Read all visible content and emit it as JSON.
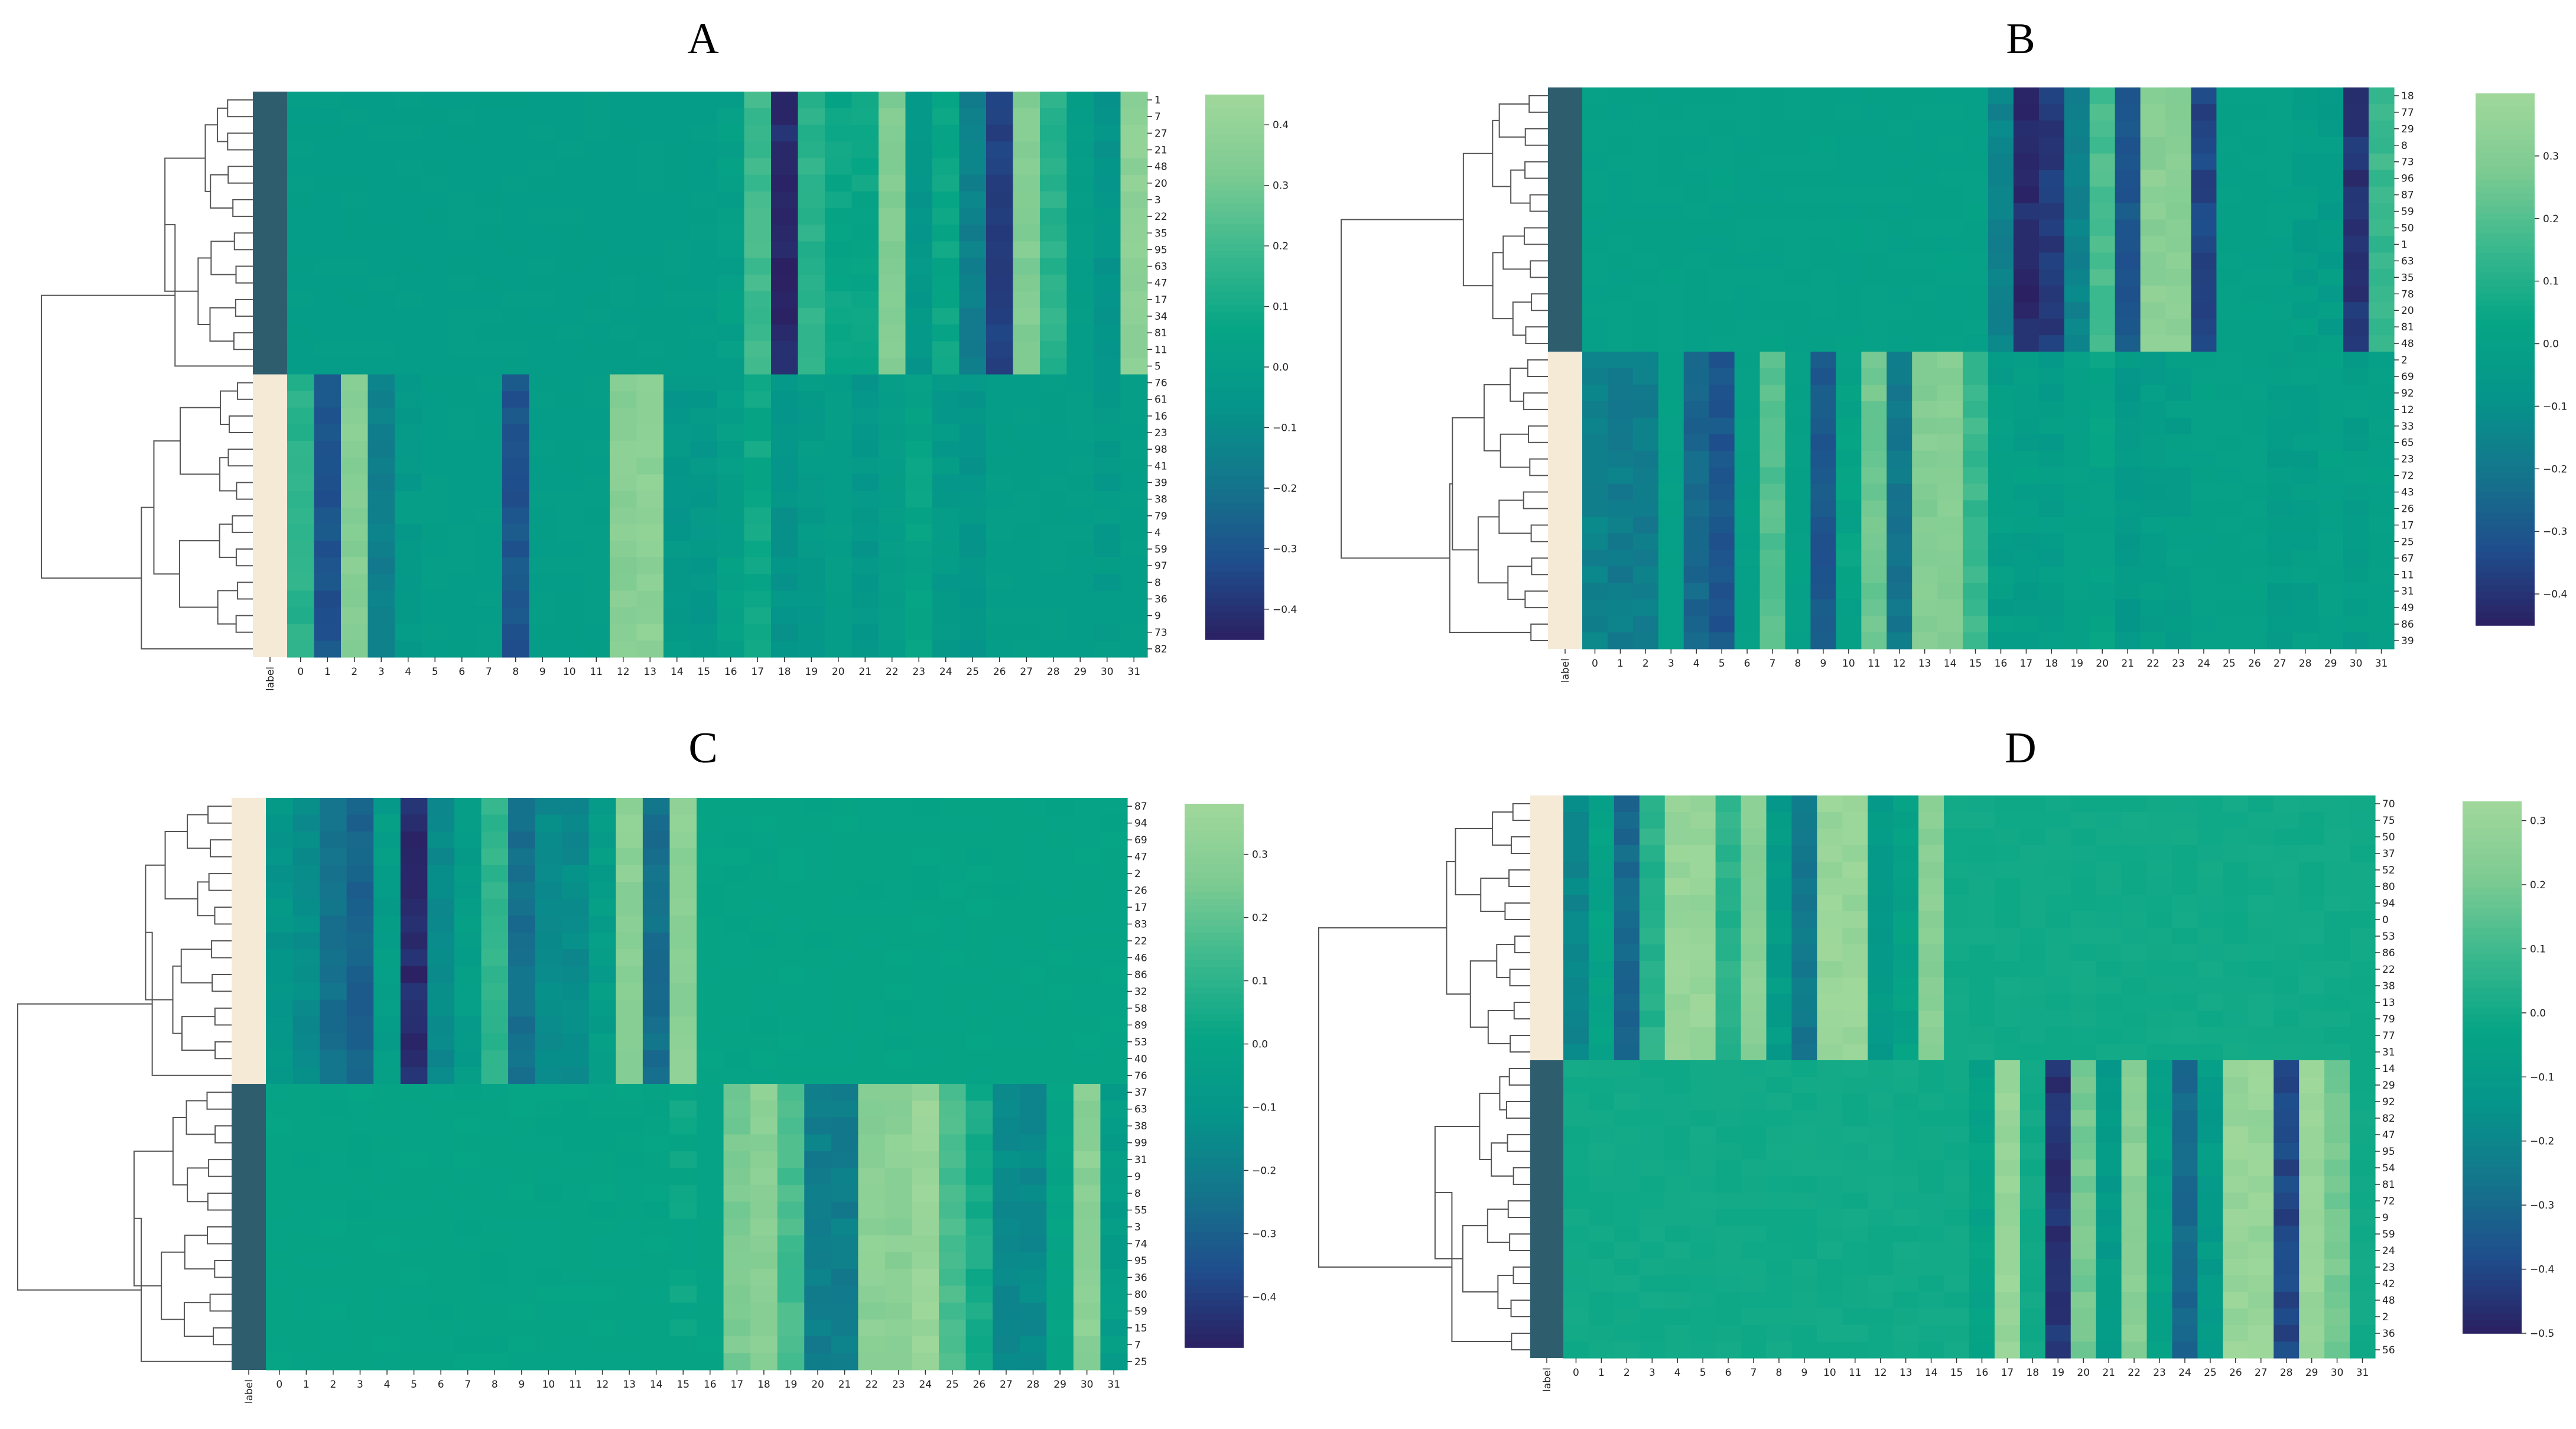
{
  "chart_data": [
    {
      "type": "heatmap",
      "title": "A",
      "xlabel": "",
      "ylabel": "",
      "columns": [
        "label",
        "0",
        "1",
        "2",
        "3",
        "4",
        "5",
        "6",
        "7",
        "8",
        "9",
        "10",
        "11",
        "12",
        "13",
        "14",
        "15",
        "16",
        "17",
        "18",
        "19",
        "20",
        "21",
        "22",
        "23",
        "24",
        "25",
        "26",
        "27",
        "28",
        "29",
        "30",
        "31"
      ],
      "rows": [
        "1",
        "7",
        "27",
        "21",
        "48",
        "20",
        "3",
        "22",
        "35",
        "95",
        "63",
        "47",
        "17",
        "34",
        "81",
        "11",
        "5",
        "76",
        "61",
        "16",
        "23",
        "98",
        "41",
        "39",
        "38",
        "79",
        "4",
        "59",
        "97",
        "8",
        "36",
        "9",
        "73",
        "82"
      ],
      "clusters": [
        {
          "rows": 17,
          "label_color": "#2e5e6e",
          "profile": [
            0.0,
            0.0,
            0.0,
            0.0,
            0.0,
            0.0,
            0.0,
            0.0,
            0.0,
            0.0,
            0.0,
            0.0,
            0.0,
            0.0,
            0.0,
            0.0,
            0.02,
            0.2,
            -0.42,
            0.15,
            0.07,
            0.07,
            0.33,
            -0.05,
            0.07,
            -0.15,
            -0.35,
            0.33,
            0.15,
            0.0,
            -0.05,
            0.38
          ]
        },
        {
          "rows": 17,
          "label_color": "#f5ead6",
          "profile": [
            0.15,
            -0.3,
            0.35,
            -0.15,
            -0.02,
            0.0,
            0.0,
            0.0,
            -0.3,
            0.0,
            0.0,
            0.0,
            0.35,
            0.37,
            -0.04,
            -0.04,
            0.02,
            0.08,
            -0.06,
            -0.02,
            0.0,
            -0.04,
            0.0,
            0.05,
            -0.02,
            -0.05,
            0.0,
            0.0,
            0.0,
            0.0,
            -0.02,
            0.0
          ]
        }
      ],
      "colorbar": {
        "vmin": -0.45,
        "vmax": 0.45,
        "ticks": [
          "0.4",
          "0.3",
          "0.2",
          "0.1",
          "0.0",
          "−0.1",
          "−0.2",
          "−0.3",
          "−0.4"
        ]
      }
    },
    {
      "type": "heatmap",
      "title": "B",
      "xlabel": "",
      "ylabel": "",
      "columns": [
        "label",
        "0",
        "1",
        "2",
        "3",
        "4",
        "5",
        "6",
        "7",
        "8",
        "9",
        "10",
        "11",
        "12",
        "13",
        "14",
        "15",
        "16",
        "17",
        "18",
        "19",
        "20",
        "21",
        "22",
        "23",
        "24",
        "25",
        "26",
        "27",
        "28",
        "29",
        "30",
        "31"
      ],
      "rows": [
        "18",
        "77",
        "29",
        "8",
        "73",
        "96",
        "87",
        "59",
        "50",
        "1",
        "63",
        "35",
        "78",
        "20",
        "81",
        "48",
        "2",
        "69",
        "92",
        "12",
        "33",
        "65",
        "23",
        "72",
        "43",
        "26",
        "17",
        "25",
        "67",
        "11",
        "31",
        "49",
        "86",
        "39"
      ],
      "clusters": [
        {
          "rows": 16,
          "label_color": "#2e5e6e",
          "profile": [
            0.0,
            0.0,
            0.0,
            0.0,
            0.0,
            0.0,
            0.0,
            0.0,
            0.0,
            0.0,
            0.0,
            0.0,
            0.0,
            0.0,
            0.0,
            0.0,
            -0.15,
            -0.42,
            -0.38,
            -0.15,
            0.18,
            -0.3,
            0.32,
            0.32,
            -0.35,
            0.0,
            0.0,
            0.0,
            -0.02,
            -0.03,
            -0.4,
            0.15
          ]
        },
        {
          "rows": 18,
          "label_color": "#f5ead6",
          "profile": [
            -0.15,
            -0.18,
            -0.18,
            0.0,
            -0.25,
            -0.3,
            0.0,
            0.2,
            0.0,
            -0.3,
            0.02,
            0.25,
            -0.2,
            0.3,
            0.3,
            0.15,
            -0.02,
            -0.02,
            -0.03,
            0.0,
            0.02,
            -0.05,
            -0.02,
            -0.02,
            0.0,
            0.0,
            0.0,
            -0.02,
            -0.02,
            0.0,
            -0.02,
            0.0
          ]
        }
      ],
      "colorbar": {
        "vmin": -0.45,
        "vmax": 0.4,
        "ticks": [
          "0.3",
          "0.2",
          "0.1",
          "0.0",
          "−0.1",
          "−0.2",
          "−0.3",
          "−0.4"
        ]
      }
    },
    {
      "type": "heatmap",
      "title": "C",
      "xlabel": "",
      "ylabel": "",
      "columns": [
        "label",
        "0",
        "1",
        "2",
        "3",
        "4",
        "5",
        "6",
        "7",
        "8",
        "9",
        "10",
        "11",
        "12",
        "13",
        "14",
        "15",
        "16",
        "17",
        "18",
        "19",
        "20",
        "21",
        "22",
        "23",
        "24",
        "25",
        "26",
        "27",
        "28",
        "29",
        "30",
        "31"
      ],
      "rows": [
        "87",
        "94",
        "69",
        "47",
        "2",
        "26",
        "17",
        "83",
        "22",
        "46",
        "86",
        "32",
        "58",
        "89",
        "53",
        "40",
        "76",
        "37",
        "63",
        "38",
        "99",
        "31",
        "9",
        "8",
        "55",
        "3",
        "74",
        "95",
        "36",
        "80",
        "59",
        "15",
        "7",
        "25"
      ],
      "clusters": [
        {
          "rows": 17,
          "label_color": "#f5ead6",
          "profile": [
            -0.1,
            -0.15,
            -0.25,
            -0.3,
            -0.05,
            -0.45,
            -0.15,
            -0.05,
            0.1,
            -0.25,
            -0.15,
            -0.15,
            -0.05,
            0.3,
            -0.25,
            0.3,
            0.0,
            0.0,
            0.0,
            0.0,
            0.0,
            0.0,
            0.0,
            0.0,
            0.0,
            0.0,
            0.0,
            0.0,
            0.0,
            0.0,
            0.0,
            0.0
          ]
        },
        {
          "rows": 17,
          "label_color": "#2e5e6e",
          "profile": [
            0.0,
            0.0,
            0.0,
            0.0,
            0.0,
            0.0,
            0.0,
            0.0,
            0.0,
            0.0,
            0.0,
            0.0,
            0.0,
            0.0,
            0.0,
            0.02,
            0.0,
            0.25,
            0.3,
            0.15,
            -0.2,
            -0.2,
            0.3,
            0.3,
            0.35,
            0.15,
            0.05,
            -0.15,
            -0.15,
            0.0,
            0.3,
            -0.05
          ]
        }
      ],
      "colorbar": {
        "vmin": -0.48,
        "vmax": 0.38,
        "ticks": [
          "0.3",
          "0.2",
          "0.1",
          "0.0",
          "−0.1",
          "−0.2",
          "−0.3",
          "−0.4"
        ]
      }
    },
    {
      "type": "heatmap",
      "title": "D",
      "xlabel": "",
      "ylabel": "",
      "columns": [
        "label",
        "0",
        "1",
        "2",
        "3",
        "4",
        "5",
        "6",
        "7",
        "8",
        "9",
        "10",
        "11",
        "12",
        "13",
        "14",
        "15",
        "16",
        "17",
        "18",
        "19",
        "20",
        "21",
        "22",
        "23",
        "24",
        "25",
        "26",
        "27",
        "28",
        "29",
        "30",
        "31"
      ],
      "rows": [
        "70",
        "75",
        "50",
        "37",
        "52",
        "80",
        "94",
        "0",
        "53",
        "86",
        "22",
        "38",
        "13",
        "79",
        "77",
        "31",
        "14",
        "29",
        "92",
        "82",
        "47",
        "95",
        "54",
        "81",
        "72",
        "9",
        "59",
        "24",
        "23",
        "42",
        "48",
        "2",
        "36",
        "56"
      ],
      "clusters": [
        {
          "rows": 16,
          "label_color": "#f5ead6",
          "profile": [
            -0.2,
            -0.05,
            -0.3,
            0.05,
            0.3,
            0.3,
            0.05,
            0.25,
            -0.1,
            -0.25,
            0.3,
            0.3,
            -0.1,
            -0.05,
            0.25,
            0.0,
            0.0,
            0.0,
            0.0,
            0.0,
            0.0,
            0.0,
            0.0,
            0.0,
            0.0,
            0.0,
            0.0,
            0.0,
            0.0,
            0.0,
            0.0,
            0.0
          ]
        },
        {
          "rows": 18,
          "label_color": "#2e5e6e",
          "profile": [
            0.0,
            0.0,
            0.0,
            0.0,
            0.0,
            0.0,
            0.0,
            0.0,
            0.0,
            0.0,
            0.0,
            0.0,
            0.0,
            0.0,
            0.0,
            0.0,
            -0.05,
            0.3,
            0.0,
            -0.45,
            0.2,
            -0.1,
            0.25,
            -0.05,
            -0.3,
            -0.1,
            0.3,
            0.3,
            -0.4,
            0.3,
            0.2,
            0.0
          ]
        }
      ],
      "colorbar": {
        "vmin": -0.5,
        "vmax": 0.33,
        "ticks": [
          "0.3",
          "0.2",
          "0.1",
          "0.0",
          "−0.1",
          "−0.2",
          "−0.3",
          "−0.4",
          "−0.5"
        ]
      }
    }
  ],
  "colormap": [
    "#2b2062",
    "#1f4e8c",
    "#14758c",
    "#05958a",
    "#06a585",
    "#3cb98e",
    "#7ecb92",
    "#a0d89b"
  ]
}
